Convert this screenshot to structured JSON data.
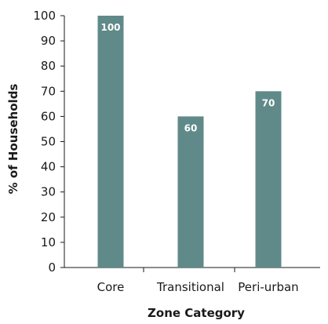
{
  "chart_data": {
    "type": "bar",
    "categories": [
      "Core",
      "Transitional",
      "Peri-urban"
    ],
    "values": [
      100,
      60,
      70
    ],
    "data_labels": [
      "100",
      "60",
      "70"
    ],
    "title": "",
    "xlabel": "Zone Category",
    "ylabel": "% of Households",
    "ylim": [
      0,
      100
    ],
    "yticks": [
      0,
      10,
      20,
      30,
      40,
      50,
      60,
      70,
      80,
      90,
      100
    ],
    "bar_color": "#5f8a89",
    "grid": false,
    "legend": "none"
  }
}
